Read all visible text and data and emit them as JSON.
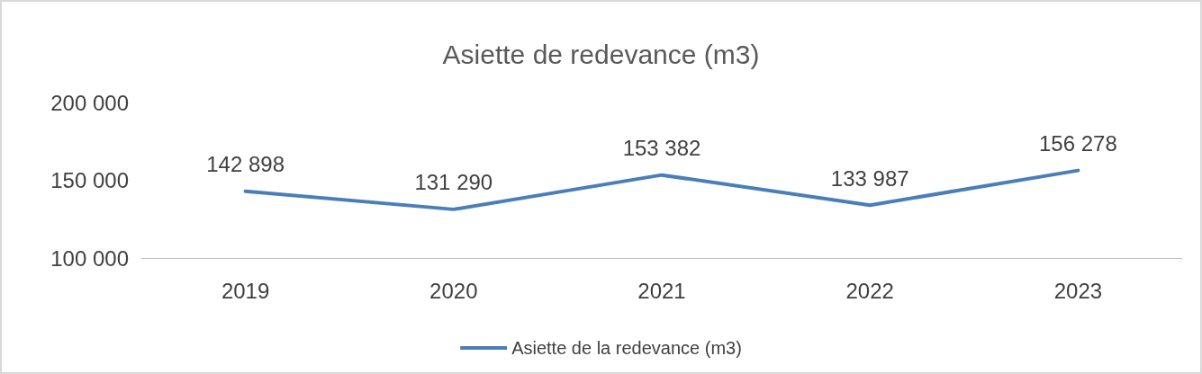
{
  "chart_data": {
    "type": "line",
    "title": "Asiette de redevance (m3)",
    "categories": [
      "2019",
      "2020",
      "2021",
      "2022",
      "2023"
    ],
    "series": [
      {
        "name": "Asiette de la redevance (m3)",
        "color": "#4a7ebb",
        "values": [
          142898,
          131290,
          153382,
          133987,
          156278
        ],
        "value_labels": [
          "142 898",
          "131 290",
          "153 382",
          "133 987",
          "156 278"
        ]
      }
    ],
    "ylim": [
      100000,
      200000
    ],
    "yticks": [
      {
        "value": 100000,
        "label": "100 000"
      },
      {
        "value": 150000,
        "label": "150 000"
      },
      {
        "value": 200000,
        "label": "200 000"
      }
    ],
    "grid": false,
    "legend": "bottom",
    "marker": "none",
    "line_style": "solid"
  }
}
